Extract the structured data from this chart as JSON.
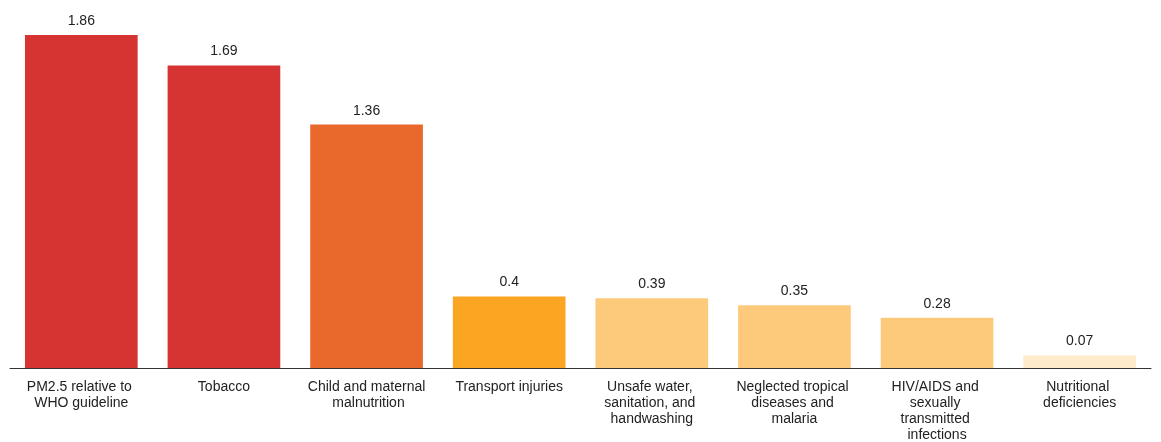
{
  "chart_data": {
    "type": "bar",
    "categories": [
      "PM2.5 relative to WHO guideline",
      "Tobacco",
      "Child and maternal malnutrition",
      "Transport injuries",
      "Unsafe water, sanitation, and handwashing",
      "Neglected tropical diseases and malaria",
      "HIV/AIDS and sexually transmitted infections",
      "Nutritional deficiencies"
    ],
    "values": [
      1.86,
      1.69,
      1.36,
      0.4,
      0.39,
      0.35,
      0.28,
      0.07
    ],
    "colors": [
      "#d63333",
      "#d63333",
      "#e9692c",
      "#fca523",
      "#fdca7b",
      "#fdca7b",
      "#fdca7b",
      "#fdebcc"
    ],
    "data_labels": true
  }
}
